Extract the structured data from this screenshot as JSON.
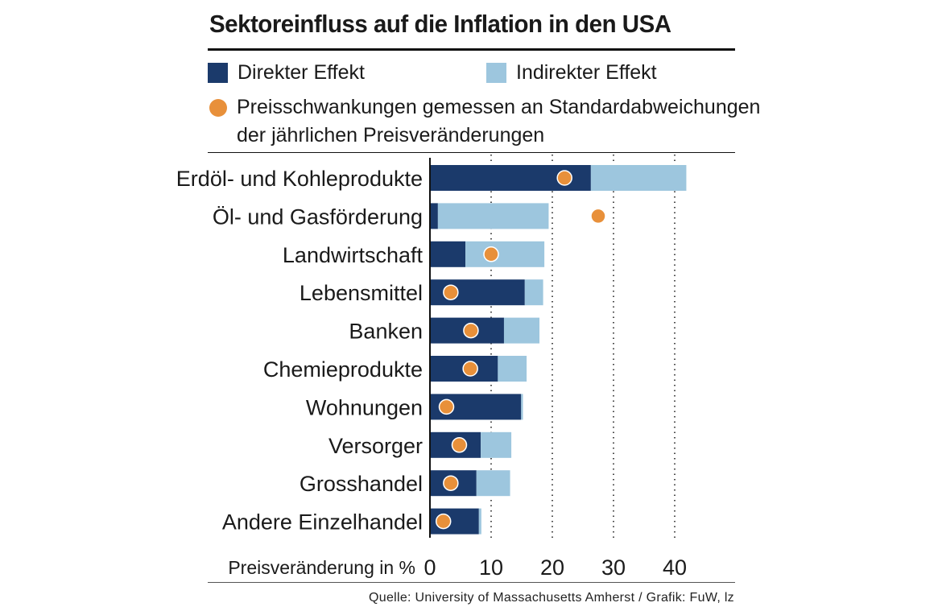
{
  "title": "Sektoreinfluss auf die Inflation in den USA",
  "legend": {
    "direct": "Direkter Effekt",
    "indirect": "Indirekter Effekt",
    "dot_line1": "Preisschwankungen gemessen an Standardabweichungen",
    "dot_line2": "der jährlichen Preisveränderungen"
  },
  "colors": {
    "direct": "#1b3a6b",
    "indirect": "#9dc6de",
    "dot": "#e8903a",
    "dot_stroke": "#ffffff"
  },
  "source": "Quelle: University of Massachusetts Amherst / Grafik: FuW, lz",
  "chart_data": {
    "type": "bar",
    "orientation": "horizontal",
    "stacked": true,
    "title": "Sektoreinfluss auf die Inflation in den USA",
    "xlabel": "Preisveränderung in %",
    "xlim": [
      0,
      42
    ],
    "xticks": [
      0,
      10,
      20,
      30,
      40
    ],
    "grid": "vertical dotted at 10, 20, 30, 40",
    "categories": [
      "Erdöl- und Kohleprodukte",
      "Öl- und Gasförderung",
      "Landwirtschaft",
      "Lebensmittel",
      "Banken",
      "Chemieprodukte",
      "Wohnungen",
      "Versorger",
      "Grosshandel",
      "Andere Einzelhandel"
    ],
    "series": [
      {
        "name": "Direkter Effekt",
        "values": [
          26.3,
          1.3,
          5.8,
          15.5,
          12.1,
          11.1,
          14.9,
          8.3,
          7.6,
          8.0
        ]
      },
      {
        "name": "Indirekter Effekt",
        "values": [
          15.6,
          18.1,
          12.9,
          3.0,
          5.8,
          4.7,
          0.3,
          5.0,
          5.5,
          0.4
        ]
      }
    ],
    "markers": {
      "name": "Preisschwankungen gemessen an Standardabweichungen der jährlichen Preisveränderungen",
      "values": [
        22.0,
        27.5,
        10.0,
        3.4,
        6.7,
        6.6,
        2.7,
        4.8,
        3.4,
        2.2
      ]
    }
  }
}
